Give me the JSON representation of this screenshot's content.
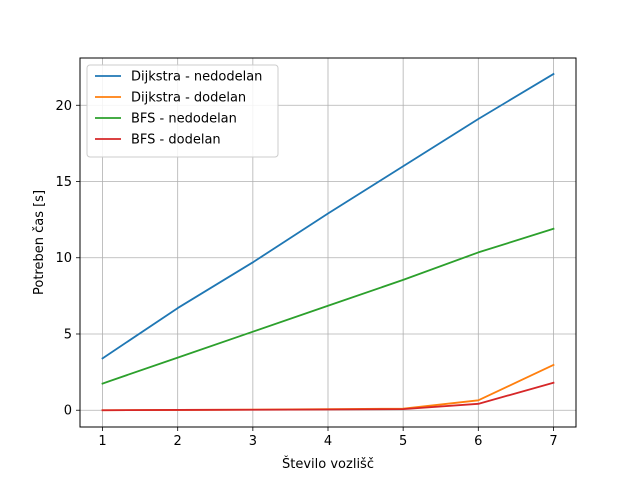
{
  "chart_data": {
    "type": "line",
    "title": "",
    "xlabel": "Število vozlišč",
    "ylabel": "Potreben čas [s]",
    "x": [
      1,
      2,
      3,
      4,
      5,
      6,
      7
    ],
    "xlim": [
      0.7,
      7.3
    ],
    "ylim": [
      -1.1,
      23.1
    ],
    "xticks": [
      1,
      2,
      3,
      4,
      5,
      6,
      7
    ],
    "yticks": [
      0,
      5,
      10,
      15,
      20
    ],
    "grid": true,
    "legend_position": "top-left",
    "series": [
      {
        "name": "Dijkstra - nedodelan",
        "color": "#1f77b4",
        "values": [
          3.4,
          6.7,
          9.7,
          12.9,
          16.0,
          19.1,
          22.05
        ]
      },
      {
        "name": "Dijkstra - dodelan",
        "color": "#ff7f0e",
        "values": [
          0.0,
          0.02,
          0.04,
          0.07,
          0.1,
          0.65,
          2.97
        ]
      },
      {
        "name": "BFS - nedodelan",
        "color": "#2ca02c",
        "values": [
          1.75,
          3.45,
          5.15,
          6.85,
          8.55,
          10.35,
          11.9
        ]
      },
      {
        "name": "BFS - dodelan",
        "color": "#d62728",
        "values": [
          0.0,
          0.02,
          0.03,
          0.05,
          0.07,
          0.42,
          1.8
        ]
      }
    ]
  }
}
